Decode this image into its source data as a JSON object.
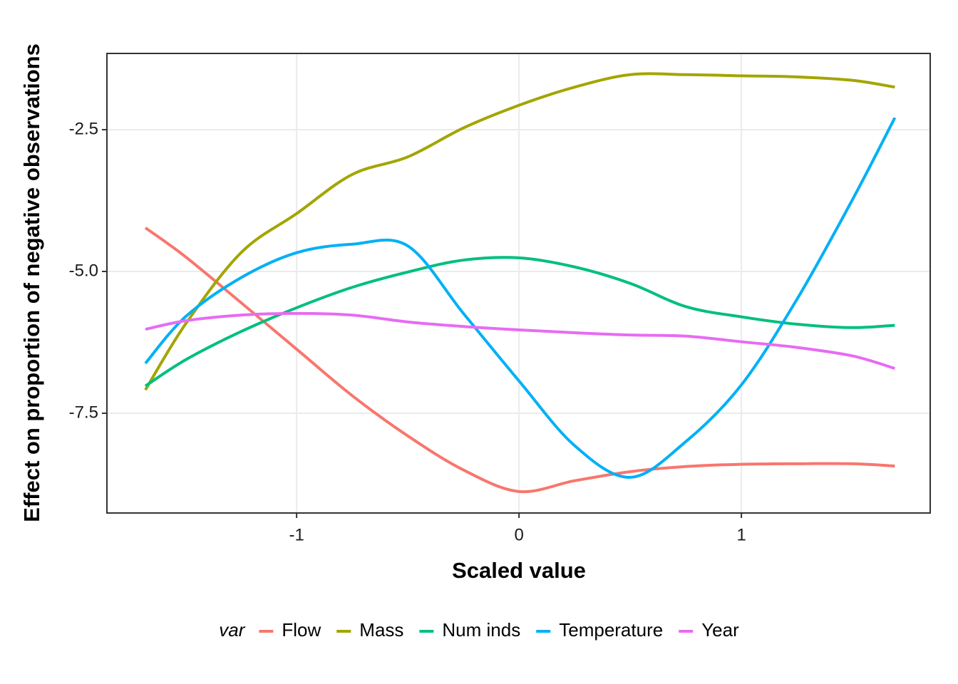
{
  "chart_data": {
    "type": "line",
    "x_label": "Scaled value",
    "y_label": "Effect on proportion of negative observations",
    "legend_title": "var",
    "legend_position": "bottom",
    "grid": true,
    "x": [
      -1.68,
      -1.5,
      -1.25,
      -1,
      -0.75,
      -0.5,
      -0.25,
      0,
      0.25,
      0.5,
      0.75,
      1,
      1.25,
      1.5,
      1.69
    ],
    "series": [
      {
        "name": "Flow",
        "color": "#F8766D",
        "values": [
          -4.23,
          -4.74,
          -5.55,
          -6.37,
          -7.19,
          -7.9,
          -8.5,
          -8.88,
          -8.69,
          -8.53,
          -8.44,
          -8.4,
          -8.39,
          -8.39,
          -8.43
        ]
      },
      {
        "name": "Mass",
        "color": "#A3A500",
        "values": [
          -7.09,
          -5.93,
          -4.67,
          -3.98,
          -3.29,
          -2.98,
          -2.47,
          -2.07,
          -1.75,
          -1.53,
          -1.53,
          -1.55,
          -1.57,
          -1.63,
          -1.75
        ]
      },
      {
        "name": "Num inds",
        "color": "#00BF7D",
        "values": [
          -7.02,
          -6.56,
          -6.06,
          -5.64,
          -5.28,
          -5.01,
          -4.8,
          -4.76,
          -4.92,
          -5.21,
          -5.62,
          -5.8,
          -5.93,
          -5.99,
          -5.95
        ]
      },
      {
        "name": "Temperature",
        "color": "#00B0F6",
        "values": [
          -6.62,
          -5.8,
          -5.11,
          -4.67,
          -4.52,
          -4.55,
          -5.74,
          -6.93,
          -8.07,
          -8.63,
          -8.0,
          -7.0,
          -5.49,
          -3.73,
          -2.29
        ]
      },
      {
        "name": "Year",
        "color": "#E76BF3",
        "values": [
          -6.02,
          -5.87,
          -5.77,
          -5.74,
          -5.77,
          -5.89,
          -5.97,
          -6.03,
          -6.08,
          -6.12,
          -6.14,
          -6.24,
          -6.34,
          -6.49,
          -6.71
        ]
      }
    ],
    "xlim": [
      -1.853,
      1.849
    ],
    "ylim": [
      -9.259,
      -1.156
    ],
    "xticks": [
      -1,
      0,
      1
    ],
    "yticks": [
      -2.5,
      {
        "value": -5,
        "label": "-5.0"
      },
      -7.5
    ]
  }
}
